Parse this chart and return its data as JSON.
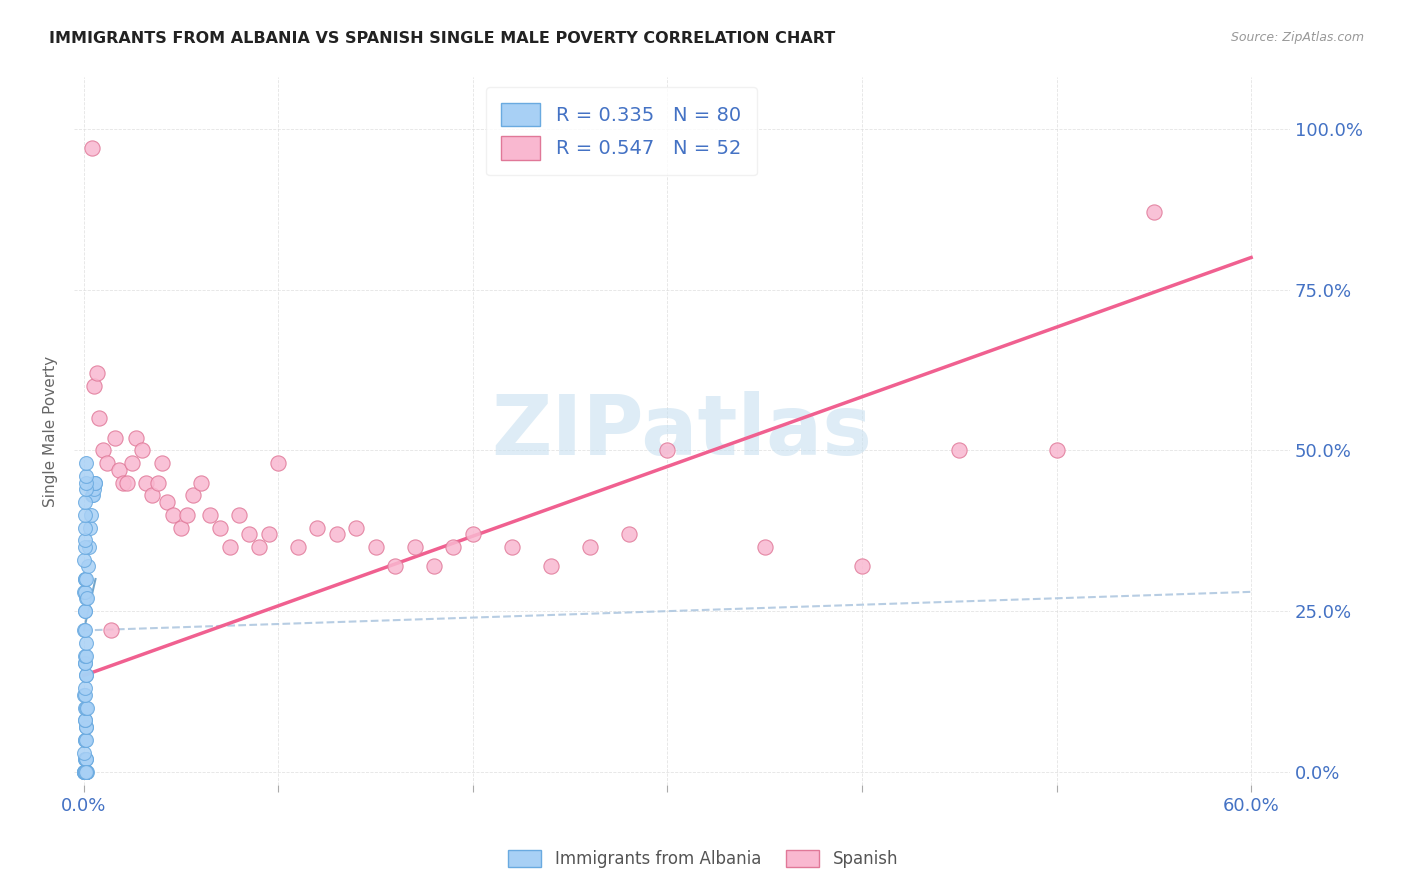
{
  "title": "IMMIGRANTS FROM ALBANIA VS SPANISH SINGLE MALE POVERTY CORRELATION CHART",
  "source": "Source: ZipAtlas.com",
  "ylabel": "Single Male Poverty",
  "yticks_labels": [
    "0.0%",
    "25.0%",
    "50.0%",
    "75.0%",
    "100.0%"
  ],
  "ytick_vals": [
    0.0,
    0.25,
    0.5,
    0.75,
    1.0
  ],
  "xticks_labels": [
    "0.0%",
    "",
    "",
    "",
    "",
    "",
    "60.0%"
  ],
  "xtick_vals": [
    0.0,
    0.1,
    0.2,
    0.3,
    0.4,
    0.5,
    0.6
  ],
  "xlim": [
    -0.005,
    0.62
  ],
  "ylim": [
    -0.02,
    1.08
  ],
  "albania_R": 0.335,
  "albania_N": 80,
  "spanish_R": 0.547,
  "spanish_N": 52,
  "albania_color": "#A8D0F5",
  "albania_edge": "#6AAAE0",
  "spanish_color": "#F9B8D0",
  "spanish_edge": "#E07898",
  "albania_trend_color": "#B8D8F0",
  "spanish_trend_color": "#F06090",
  "legend_label_albania": "Immigrants from Albania",
  "legend_label_spanish": "Spanish",
  "watermark_color": "#C8E0F0",
  "albania_x": [
    0.0005,
    0.0008,
    0.001,
    0.0012,
    0.0015,
    0.0005,
    0.0007,
    0.001,
    0.0013,
    0.0003,
    0.0005,
    0.0007,
    0.0009,
    0.001,
    0.0012,
    0.0004,
    0.0006,
    0.0008,
    0.001,
    0.0014,
    0.0003,
    0.0005,
    0.0007,
    0.0009,
    0.0011,
    0.0004,
    0.0006,
    0.0008,
    0.001,
    0.0012,
    0.0003,
    0.0005,
    0.0006,
    0.0008,
    0.001,
    0.0003,
    0.0004,
    0.0006,
    0.0008,
    0.001,
    0.0003,
    0.0004,
    0.0005,
    0.0007,
    0.0009,
    0.0003,
    0.0004,
    0.0006,
    0.0007,
    0.0009,
    0.0003,
    0.0004,
    0.0005,
    0.0006,
    0.0008,
    0.0003,
    0.0004,
    0.0005,
    0.0007,
    0.0009,
    0.0015,
    0.002,
    0.0025,
    0.003,
    0.0035,
    0.004,
    0.0045,
    0.005,
    0.0055,
    0.006,
    0.0003,
    0.0004,
    0.0005,
    0.0006,
    0.0007,
    0.0008,
    0.0009,
    0.001,
    0.0011,
    0.0012
  ],
  "albania_y": [
    0.0,
    0.0,
    0.0,
    0.0,
    0.0,
    0.02,
    0.02,
    0.02,
    0.02,
    0.03,
    0.05,
    0.05,
    0.05,
    0.07,
    0.07,
    0.08,
    0.08,
    0.1,
    0.1,
    0.1,
    0.12,
    0.12,
    0.13,
    0.15,
    0.15,
    0.17,
    0.17,
    0.18,
    0.18,
    0.2,
    0.22,
    0.22,
    0.25,
    0.25,
    0.27,
    0.28,
    0.28,
    0.3,
    0.3,
    0.3,
    0.0,
    0.0,
    0.0,
    0.0,
    0.0,
    0.0,
    0.0,
    0.0,
    0.0,
    0.0,
    0.0,
    0.0,
    0.0,
    0.0,
    0.0,
    0.0,
    0.0,
    0.0,
    0.0,
    0.0,
    0.27,
    0.32,
    0.35,
    0.38,
    0.4,
    0.43,
    0.43,
    0.44,
    0.45,
    0.45,
    0.33,
    0.35,
    0.36,
    0.38,
    0.4,
    0.42,
    0.44,
    0.45,
    0.46,
    0.48
  ],
  "spanish_x": [
    0.004,
    0.005,
    0.007,
    0.008,
    0.01,
    0.012,
    0.014,
    0.016,
    0.018,
    0.02,
    0.022,
    0.025,
    0.027,
    0.03,
    0.032,
    0.035,
    0.038,
    0.04,
    0.043,
    0.046,
    0.05,
    0.053,
    0.056,
    0.06,
    0.065,
    0.07,
    0.075,
    0.08,
    0.085,
    0.09,
    0.095,
    0.1,
    0.11,
    0.12,
    0.13,
    0.14,
    0.15,
    0.16,
    0.17,
    0.18,
    0.19,
    0.2,
    0.22,
    0.24,
    0.26,
    0.28,
    0.3,
    0.35,
    0.4,
    0.45,
    0.5,
    0.55
  ],
  "spanish_y": [
    0.97,
    0.6,
    0.62,
    0.55,
    0.5,
    0.48,
    0.22,
    0.52,
    0.47,
    0.45,
    0.45,
    0.48,
    0.52,
    0.5,
    0.45,
    0.43,
    0.45,
    0.48,
    0.42,
    0.4,
    0.38,
    0.4,
    0.43,
    0.45,
    0.4,
    0.38,
    0.35,
    0.4,
    0.37,
    0.35,
    0.37,
    0.48,
    0.35,
    0.38,
    0.37,
    0.38,
    0.35,
    0.32,
    0.35,
    0.32,
    0.35,
    0.37,
    0.35,
    0.32,
    0.35,
    0.37,
    0.5,
    0.35,
    0.32,
    0.5,
    0.5,
    0.87
  ],
  "albania_trend": [
    0.0,
    0.6,
    0.22,
    0.28
  ],
  "spanish_trend": [
    0.0,
    0.6,
    0.15,
    0.8
  ]
}
